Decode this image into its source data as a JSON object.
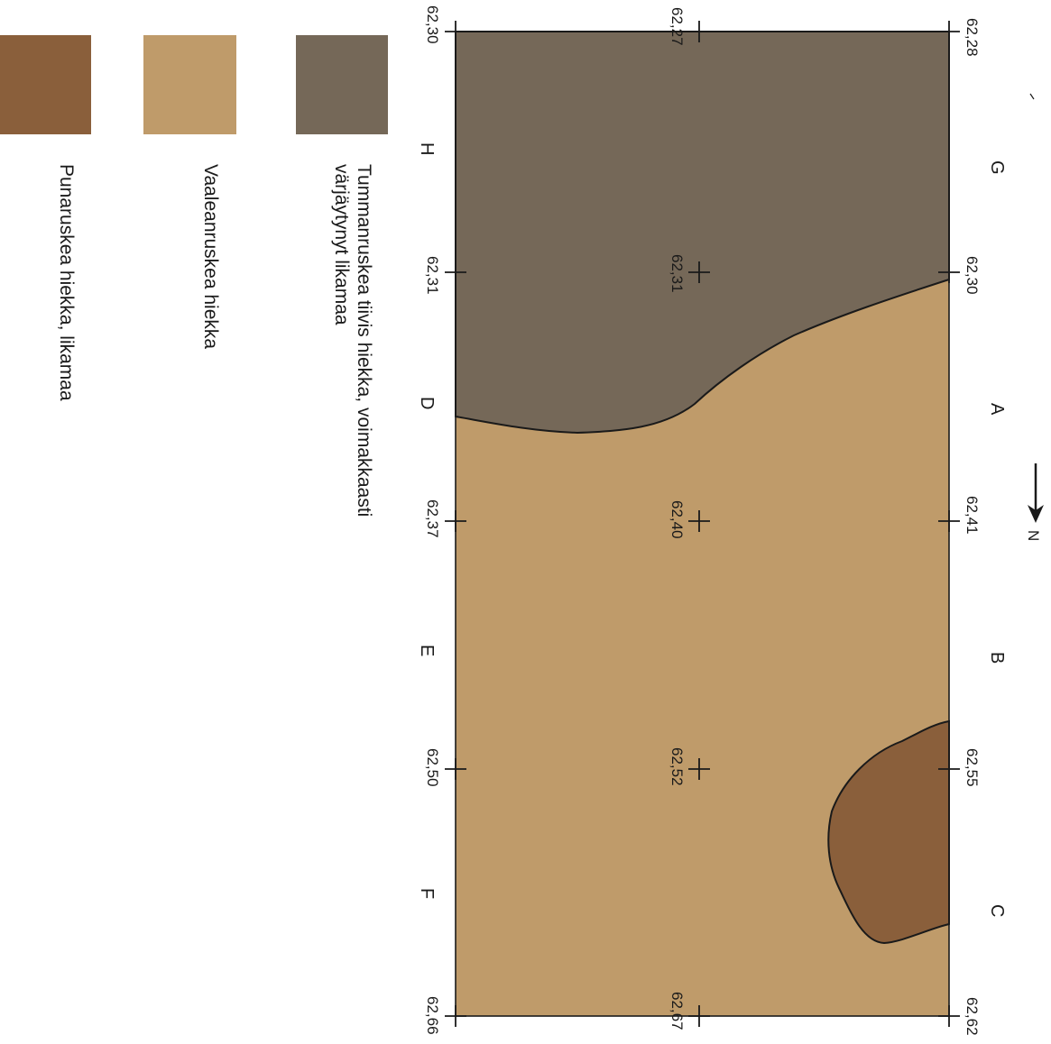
{
  "north_label": "N",
  "colors": {
    "dark_soil": "#756858",
    "light_sand": "#bf9b6a",
    "red_sand": "#8a5f3b",
    "outline": "#1a1a1a"
  },
  "grid_letters": {
    "right_col": [
      "G",
      "A",
      "B",
      "C"
    ],
    "left_col": [
      "H",
      "D",
      "E",
      "F"
    ]
  },
  "elevations": {
    "right": [
      "62,28",
      "62,30",
      "62,41",
      "62,55",
      "62,62"
    ],
    "middle": [
      "62,27",
      "62,31",
      "62,40",
      "62,52",
      "62,67"
    ],
    "left": [
      "62,30",
      "62,31",
      "62,37",
      "62,50",
      "62,66"
    ]
  },
  "legend": [
    {
      "color": "#756858",
      "lines": [
        "Tummanruskea tiivis hiekka, voimakkaasti",
        "värjäytynyt likamaa"
      ],
      "icon": "dark-soil-swatch"
    },
    {
      "color": "#bf9b6a",
      "lines": [
        "Vaaleanruskea hiekka"
      ],
      "icon": "light-sand-swatch"
    },
    {
      "color": "#8a5f3b",
      "lines": [
        "Punaruskea hiekka, likamaa"
      ],
      "icon": "red-sand-swatch"
    }
  ]
}
